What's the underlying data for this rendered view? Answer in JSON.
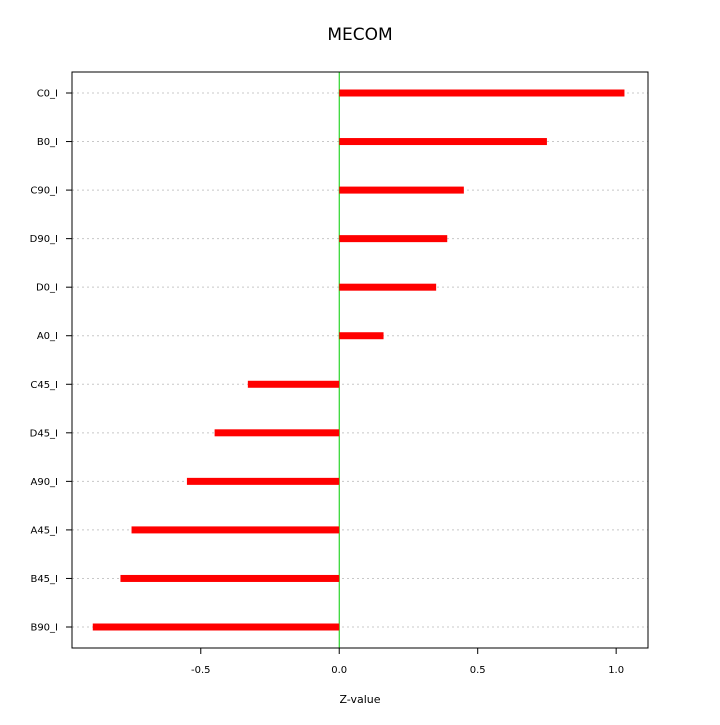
{
  "chart_data": {
    "type": "bar",
    "orientation": "horizontal",
    "title": "MECOM",
    "xlabel": "Z-value",
    "ylabel": "",
    "xlim": [
      -0.965,
      1.115
    ],
    "x_ticks": [
      -0.5,
      0.0,
      0.5,
      1.0
    ],
    "x_tick_labels": [
      "-0.5",
      "0.0",
      "0.5",
      "1.0"
    ],
    "categories": [
      "C0_I",
      "B0_I",
      "C90_I",
      "D90_I",
      "D0_I",
      "A0_I",
      "C45_I",
      "D45_I",
      "A90_I",
      "A45_I",
      "B45_I",
      "B90_I"
    ],
    "values": [
      1.03,
      0.75,
      0.45,
      0.39,
      0.35,
      0.16,
      -0.33,
      -0.45,
      -0.55,
      -0.75,
      -0.79,
      -0.89
    ],
    "reference_line": 0,
    "grid": "horizontal dotted",
    "colors": {
      "bar": "#ff0000",
      "reference_line": "#00cc00",
      "grid": "#c8c8c8",
      "axis": "#000000"
    }
  }
}
